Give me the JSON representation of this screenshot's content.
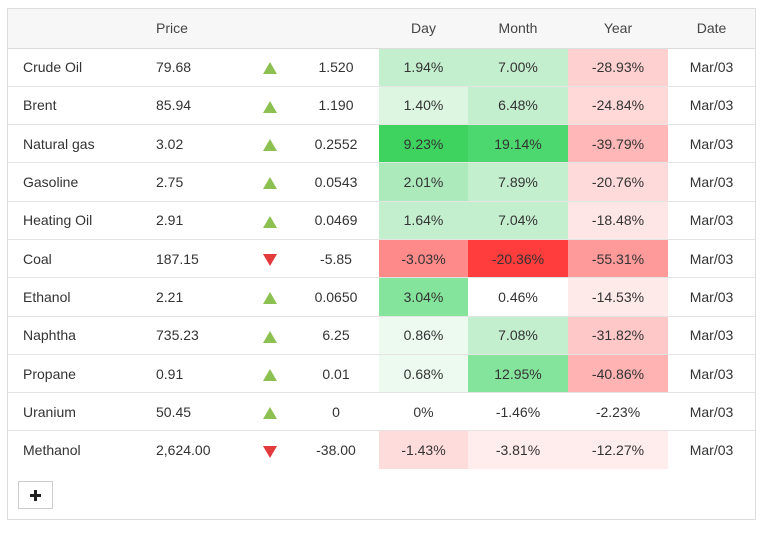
{
  "header": {
    "name": "",
    "price": "Price",
    "direction": "",
    "change": "",
    "day": "Day",
    "month": "Month",
    "year": "Year",
    "date": "Date"
  },
  "rows": [
    {
      "name": "Crude Oil",
      "price": "79.68",
      "dir": "up",
      "change": "1.520",
      "day": "1.94%",
      "month": "7.00%",
      "year": "-28.93%",
      "date": "Mar/03",
      "day_bg": "#c4efcf",
      "month_bg": "#c4efcf",
      "year_bg": "#ffd0d0"
    },
    {
      "name": "Brent",
      "price": "85.94",
      "dir": "up",
      "change": "1.190",
      "day": "1.40%",
      "month": "6.48%",
      "year": "-24.84%",
      "date": "Mar/03",
      "day_bg": "#dcf6e2",
      "month_bg": "#c4efcf",
      "year_bg": "#ffd8d8"
    },
    {
      "name": "Natural gas",
      "price": "3.02",
      "dir": "up",
      "change": "0.2552",
      "day": "9.23%",
      "month": "19.14%",
      "year": "-39.79%",
      "date": "Mar/03",
      "day_bg": "#3ed35f",
      "month_bg": "#4cd86e",
      "year_bg": "#ffb7b7"
    },
    {
      "name": "Gasoline",
      "price": "2.75",
      "dir": "up",
      "change": "0.0543",
      "day": "2.01%",
      "month": "7.89%",
      "year": "-20.76%",
      "date": "Mar/03",
      "day_bg": "#aceabc",
      "month_bg": "#c4efcf",
      "year_bg": "#ffdada"
    },
    {
      "name": "Heating Oil",
      "price": "2.91",
      "dir": "up",
      "change": "0.0469",
      "day": "1.64%",
      "month": "7.04%",
      "year": "-18.48%",
      "date": "Mar/03",
      "day_bg": "#c4efcf",
      "month_bg": "#c4efcf",
      "year_bg": "#ffe6e6"
    },
    {
      "name": "Coal",
      "price": "187.15",
      "dir": "down",
      "change": "-5.85",
      "day": "-3.03%",
      "month": "-20.36%",
      "year": "-55.31%",
      "date": "Mar/03",
      "day_bg": "#ff8a8a",
      "month_bg": "#ff3d3d",
      "year_bg": "#ff9a9a"
    },
    {
      "name": "Ethanol",
      "price": "2.21",
      "dir": "up",
      "change": "0.0650",
      "day": "3.04%",
      "month": "0.46%",
      "year": "-14.53%",
      "date": "Mar/03",
      "day_bg": "#85e49c",
      "month_bg": "#ffffff",
      "year_bg": "#ffeaea"
    },
    {
      "name": "Naphtha",
      "price": "735.23",
      "dir": "up",
      "change": "6.25",
      "day": "0.86%",
      "month": "7.08%",
      "year": "-31.82%",
      "date": "Mar/03",
      "day_bg": "#ecfaef",
      "month_bg": "#c4efcf",
      "year_bg": "#ffc8c8"
    },
    {
      "name": "Propane",
      "price": "0.91",
      "dir": "up",
      "change": "0.01",
      "day": "0.68%",
      "month": "12.95%",
      "year": "-40.86%",
      "date": "Mar/03",
      "day_bg": "#ecfaef",
      "month_bg": "#85e49c",
      "year_bg": "#ffb3b3"
    },
    {
      "name": "Uranium",
      "price": "50.45",
      "dir": "up",
      "change": "0",
      "day": "0%",
      "month": "-1.46%",
      "year": "-2.23%",
      "date": "Mar/03",
      "day_bg": "#ffffff",
      "month_bg": "#ffffff",
      "year_bg": "#ffffff"
    },
    {
      "name": "Methanol",
      "price": "2,624.00",
      "dir": "down",
      "change": "-38.00",
      "day": "-1.43%",
      "month": "-3.81%",
      "year": "-12.27%",
      "date": "Mar/03",
      "day_bg": "#ffdcdc",
      "month_bg": "#ffecec",
      "year_bg": "#ffecec"
    }
  ],
  "icons": {
    "up": "triangle-up-icon",
    "down": "triangle-down-icon",
    "add": "plus-icon"
  },
  "colors": {
    "up": "#8cc152",
    "down": "#e33b3b"
  }
}
